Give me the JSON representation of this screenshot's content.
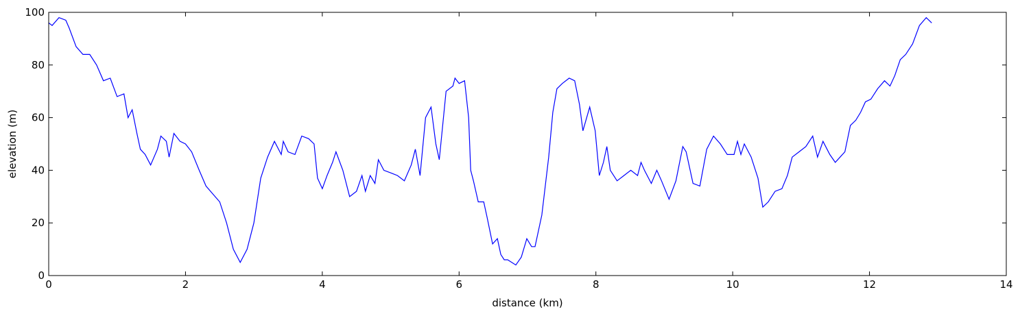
{
  "chart_data": {
    "type": "line",
    "x_label": "distance (km)",
    "y_label": "elevation (m)",
    "xlim": [
      0,
      14
    ],
    "ylim": [
      0,
      100
    ],
    "xticks": [
      0,
      2,
      4,
      6,
      8,
      10,
      12,
      14
    ],
    "yticks": [
      0,
      20,
      40,
      60,
      80,
      100
    ],
    "grid": false,
    "series": [
      {
        "color": "#0000ff",
        "x": [
          0,
          0.05,
          0.15,
          0.25,
          0.3,
          0.4,
          0.5,
          0.6,
          0.7,
          0.8,
          0.9,
          1.0,
          1.1,
          1.16,
          1.22,
          1.29,
          1.34,
          1.41,
          1.49,
          1.59,
          1.64,
          1.72,
          1.76,
          1.83,
          1.92,
          2.0,
          2.09,
          2.2,
          2.3,
          2.4,
          2.5,
          2.6,
          2.7,
          2.8,
          2.9,
          3.0,
          3.1,
          3.2,
          3.3,
          3.4,
          3.43,
          3.5,
          3.6,
          3.7,
          3.8,
          3.88,
          3.93,
          4.0,
          4.07,
          4.15,
          4.2,
          4.3,
          4.4,
          4.5,
          4.58,
          4.63,
          4.7,
          4.77,
          4.82,
          4.9,
          5.0,
          5.1,
          5.2,
          5.3,
          5.36,
          5.43,
          5.51,
          5.59,
          5.66,
          5.71,
          5.81,
          5.91,
          5.94,
          6.0,
          6.08,
          6.14,
          6.17,
          6.21,
          6.28,
          6.36,
          6.41,
          6.49,
          6.56,
          6.61,
          6.66,
          6.71,
          6.83,
          6.91,
          6.99,
          7.06,
          7.11,
          7.21,
          7.31,
          7.37,
          7.43,
          7.51,
          7.61,
          7.69,
          7.76,
          7.81,
          7.91,
          7.99,
          8.05,
          8.11,
          8.16,
          8.21,
          8.31,
          8.41,
          8.51,
          8.61,
          8.66,
          8.71,
          8.81,
          8.89,
          8.96,
          9.07,
          9.17,
          9.27,
          9.32,
          9.42,
          9.52,
          9.62,
          9.72,
          9.82,
          9.92,
          10.02,
          10.07,
          10.12,
          10.17,
          10.27,
          10.37,
          10.44,
          10.52,
          10.62,
          10.72,
          10.8,
          10.87,
          10.97,
          11.07,
          11.17,
          11.24,
          11.32,
          11.42,
          11.5,
          11.57,
          11.64,
          11.72,
          11.8,
          11.87,
          11.94,
          12.02,
          12.12,
          12.22,
          12.3,
          12.37,
          12.45,
          12.53,
          12.63,
          12.73,
          12.83,
          12.91
        ],
        "values": [
          96,
          95,
          98,
          97,
          94,
          87,
          84,
          84,
          80,
          74,
          75,
          68,
          69,
          60,
          63,
          54,
          48,
          46,
          42,
          48,
          53,
          51,
          45,
          54,
          51,
          50,
          47,
          40,
          34,
          31,
          28,
          20,
          10,
          5,
          10,
          20,
          37,
          45,
          51,
          46,
          51,
          47,
          46,
          53,
          52,
          50,
          37,
          33,
          38,
          43,
          47,
          40,
          30,
          32,
          38,
          32,
          38,
          35,
          44,
          40,
          39,
          38,
          36,
          42,
          48,
          38,
          60,
          64,
          50,
          44,
          70,
          72,
          75,
          73,
          74,
          60,
          40,
          36,
          28,
          28,
          22,
          12,
          14,
          8,
          6,
          6,
          4,
          7,
          14,
          11,
          11,
          23,
          45,
          62,
          71,
          73,
          75,
          74,
          65,
          55,
          64,
          55,
          38,
          43,
          49,
          40,
          36,
          38,
          40,
          38,
          43,
          40,
          35,
          40,
          36,
          29,
          36,
          49,
          47,
          35,
          34,
          48,
          53,
          50,
          46,
          46,
          51,
          46,
          50,
          45,
          37,
          26,
          28,
          32,
          33,
          38,
          45,
          47,
          49,
          53,
          45,
          51,
          46,
          43,
          45,
          47,
          57,
          59,
          62,
          66,
          67,
          71,
          74,
          72,
          76,
          82,
          84,
          88,
          95,
          98,
          96
        ]
      }
    ]
  }
}
